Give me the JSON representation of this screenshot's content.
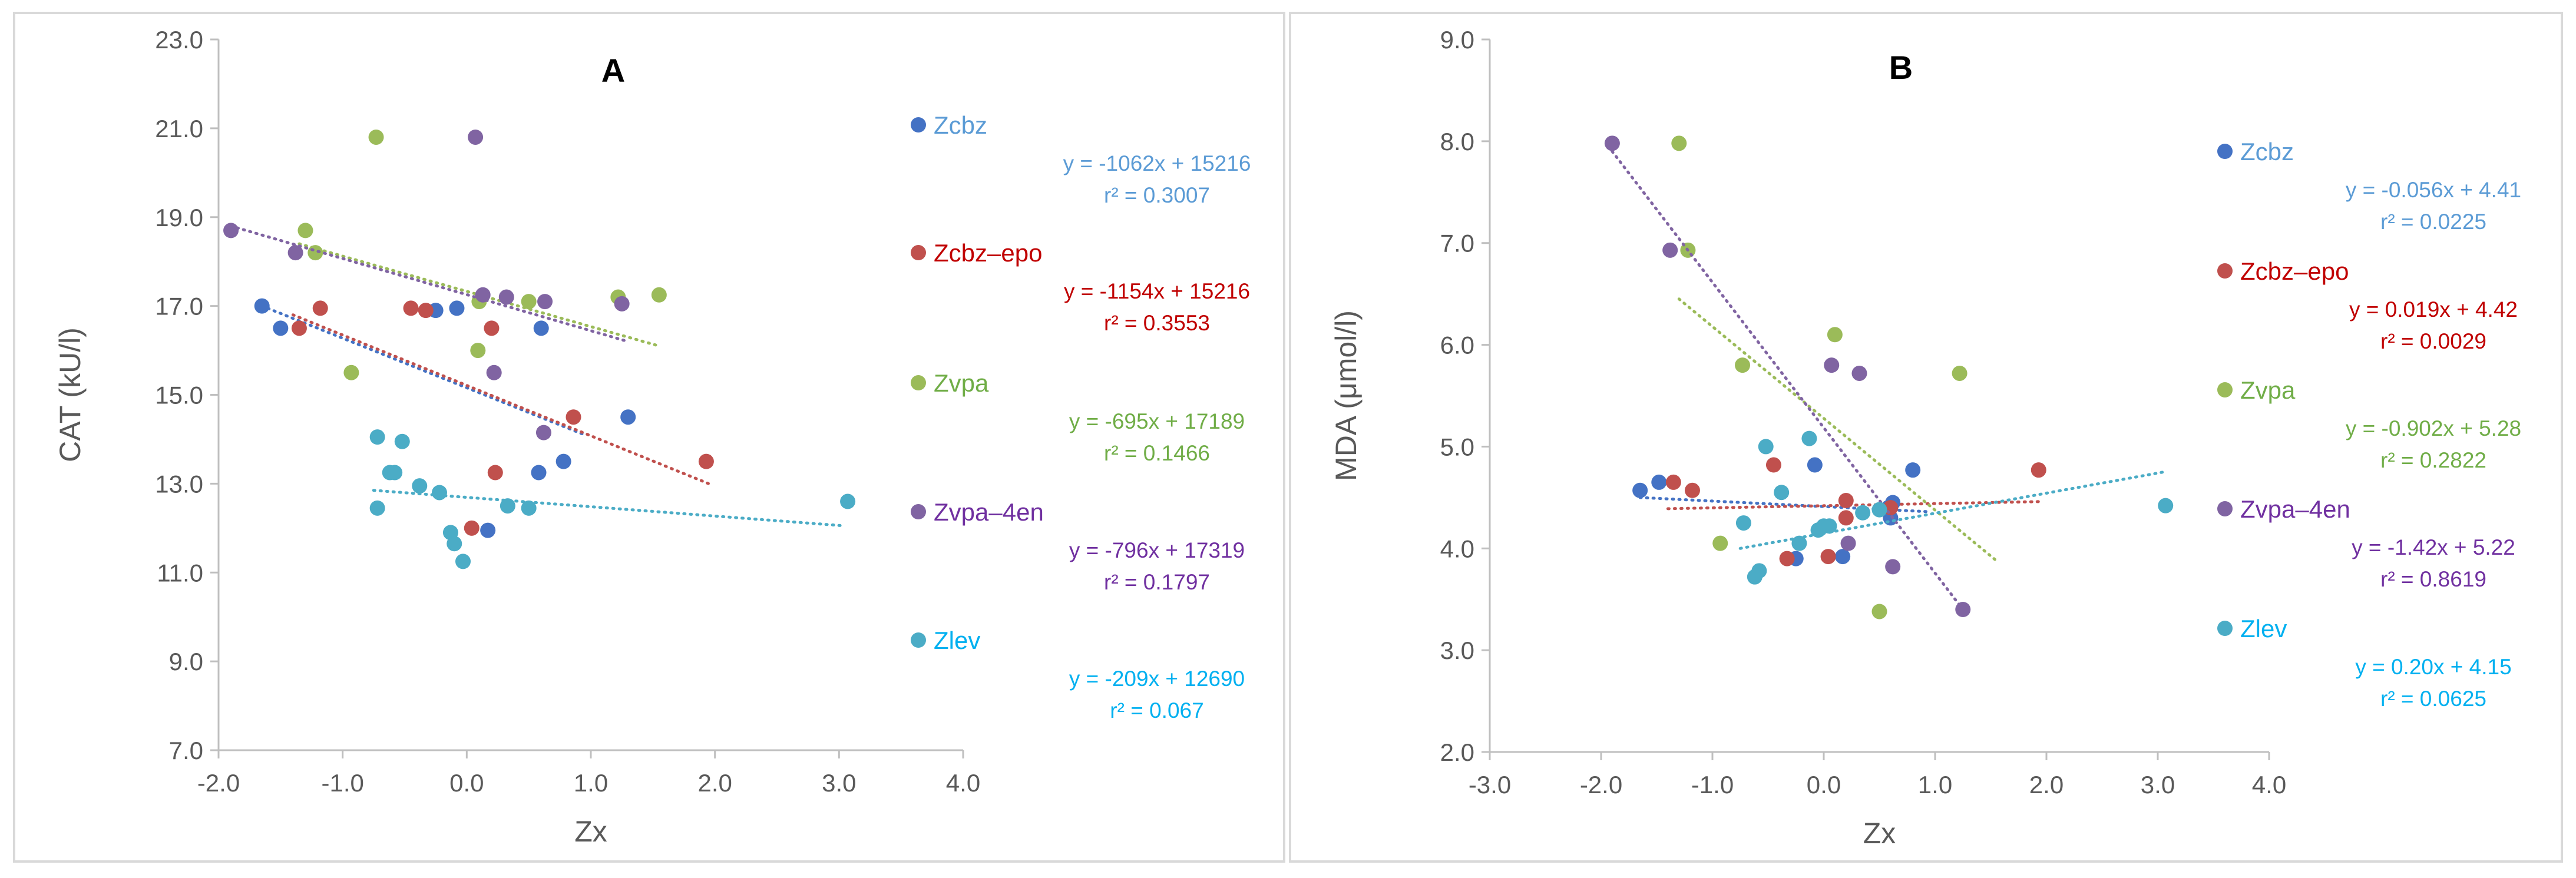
{
  "chart_data": [
    {
      "type": "scatter",
      "title": "A",
      "xlabel": "Zx",
      "ylabel": "CAT (kU/l)",
      "xlim": [
        -2.0,
        4.0
      ],
      "ylim": [
        7.0,
        23.0
      ],
      "xticks": [
        -2.0,
        -1.0,
        0.0,
        1.0,
        2.0,
        3.0,
        4.0
      ],
      "yticks": [
        7.0,
        9.0,
        11.0,
        13.0,
        15.0,
        17.0,
        19.0,
        21.0,
        23.0
      ],
      "xtick_labels": [
        "-2.0",
        "-1.0",
        "0.0",
        "1.0",
        "2.0",
        "3.0",
        "4.0"
      ],
      "ytick_labels": [
        "7.0",
        "9.0",
        "11.0",
        "13.0",
        "15.0",
        "17.0",
        "19.0",
        "21.0",
        "23.0"
      ],
      "grid": false,
      "legend": "right",
      "series": [
        {
          "name": "Zcbz",
          "color": "#4472C4",
          "label_color": "#5B9BD5",
          "eq": "y = -1062x + 15216",
          "r2": "r² = 0.3007",
          "trend": {
            "x": [
              -1.65,
              0.95
            ],
            "y": [
              17.0,
              14.1
            ]
          },
          "points": [
            [
              -1.65,
              17.0
            ],
            [
              -1.5,
              16.5
            ],
            [
              -0.25,
              16.9
            ],
            [
              -0.08,
              16.95
            ],
            [
              0.6,
              16.5
            ],
            [
              0.17,
              11.95
            ],
            [
              0.58,
              13.25
            ],
            [
              0.78,
              13.5
            ],
            [
              1.3,
              14.5
            ]
          ]
        },
        {
          "name": "Zcbz–epo",
          "color": "#C0504D",
          "label_color": "#C00000",
          "eq": "y = -1154x + 15216",
          "r2": "r² = 0.3553",
          "trend": {
            "x": [
              -1.4,
              1.95
            ],
            "y": [
              16.8,
              13.0
            ]
          },
          "points": [
            [
              -1.35,
              16.5
            ],
            [
              -1.18,
              16.95
            ],
            [
              -0.45,
              16.95
            ],
            [
              -0.33,
              16.9
            ],
            [
              0.2,
              16.5
            ],
            [
              0.23,
              13.25
            ],
            [
              0.04,
              12.0
            ],
            [
              0.86,
              14.5
            ],
            [
              1.93,
              13.5
            ]
          ]
        },
        {
          "name": "Zvpa",
          "color": "#9BBB59",
          "label_color": "#70AD47",
          "eq": "y = -695x + 17189",
          "r2": "r² = 0.1466",
          "trend": {
            "x": [
              -1.35,
              1.55
            ],
            "y": [
              18.4,
              16.1
            ]
          },
          "points": [
            [
              -1.3,
              18.7
            ],
            [
              -1.22,
              18.2
            ],
            [
              -0.93,
              15.5
            ],
            [
              -0.73,
              20.8
            ],
            [
              0.1,
              17.1
            ],
            [
              0.09,
              16.0
            ],
            [
              0.5,
              17.1
            ],
            [
              1.22,
              17.2
            ],
            [
              1.55,
              17.25
            ]
          ]
        },
        {
          "name": "Zvpa–4en",
          "color": "#8064A2",
          "label_color": "#7030A0",
          "eq": "y = -796x + 17319",
          "r2": "r² = 0.1797",
          "trend": {
            "x": [
              -1.9,
              1.3
            ],
            "y": [
              18.8,
              16.2
            ]
          },
          "points": [
            [
              -1.9,
              18.7
            ],
            [
              -1.38,
              18.2
            ],
            [
              0.07,
              20.8
            ],
            [
              0.13,
              17.25
            ],
            [
              0.32,
              17.2
            ],
            [
              0.63,
              17.1
            ],
            [
              1.25,
              17.05
            ],
            [
              0.22,
              15.5
            ],
            [
              0.62,
              14.15
            ]
          ]
        },
        {
          "name": "Zlev",
          "color": "#4BACC6",
          "label_color": "#00B0F0",
          "eq": "y = -209x + 12690",
          "r2": "r² = 0.067",
          "trend": {
            "x": [
              -0.75,
              3.05
            ],
            "y": [
              12.85,
              12.05
            ]
          },
          "points": [
            [
              -0.72,
              14.05
            ],
            [
              -0.72,
              12.45
            ],
            [
              -0.62,
              13.25
            ],
            [
              -0.58,
              13.25
            ],
            [
              -0.52,
              13.95
            ],
            [
              -0.38,
              12.95
            ],
            [
              -0.22,
              12.8
            ],
            [
              -0.13,
              11.9
            ],
            [
              -0.1,
              11.65
            ],
            [
              -0.03,
              11.25
            ],
            [
              0.33,
              12.5
            ],
            [
              0.5,
              12.45
            ],
            [
              3.07,
              12.6
            ]
          ]
        }
      ]
    },
    {
      "type": "scatter",
      "title": "B",
      "xlabel": "Zx",
      "ylabel": "MDA (μmol/l)",
      "xlim": [
        -3.0,
        4.0
      ],
      "ylim": [
        2.0,
        9.0
      ],
      "xticks": [
        -3.0,
        -2.0,
        -1.0,
        0.0,
        1.0,
        2.0,
        3.0,
        4.0
      ],
      "yticks": [
        2.0,
        3.0,
        4.0,
        5.0,
        6.0,
        7.0,
        8.0,
        9.0
      ],
      "xtick_labels": [
        "-3.0",
        "-2.0",
        "-1.0",
        "0.0",
        "1.0",
        "2.0",
        "3.0",
        "4.0"
      ],
      "ytick_labels": [
        "2.0",
        "3.0",
        "4.0",
        "5.0",
        "6.0",
        "7.0",
        "8.0",
        "9.0"
      ],
      "grid": false,
      "legend": "right",
      "series": [
        {
          "name": "Zcbz",
          "color": "#4472C4",
          "label_color": "#5B9BD5",
          "eq": "y = -0.056x + 4.41",
          "r2": "r² = 0.0225",
          "trend": {
            "x": [
              -1.65,
              0.95
            ],
            "y": [
              4.5,
              4.36
            ]
          },
          "points": [
            [
              -1.65,
              4.57
            ],
            [
              -1.48,
              4.65
            ],
            [
              -0.25,
              3.9
            ],
            [
              -0.08,
              4.82
            ],
            [
              0.17,
              3.92
            ],
            [
              0.58,
              4.4
            ],
            [
              0.6,
              4.3
            ],
            [
              0.62,
              4.45
            ],
            [
              0.8,
              4.77
            ]
          ]
        },
        {
          "name": "Zcbz–epo",
          "color": "#C0504D",
          "label_color": "#C00000",
          "eq": "y = 0.019x + 4.42",
          "r2": "r² = 0.0029",
          "trend": {
            "x": [
              -1.4,
              1.95
            ],
            "y": [
              4.39,
              4.46
            ]
          },
          "points": [
            [
              -1.35,
              4.65
            ],
            [
              -1.18,
              4.57
            ],
            [
              -0.45,
              4.82
            ],
            [
              -0.33,
              3.9
            ],
            [
              0.04,
              3.92
            ],
            [
              0.2,
              4.3
            ],
            [
              0.2,
              4.47
            ],
            [
              0.6,
              4.4
            ],
            [
              1.93,
              4.77
            ]
          ]
        },
        {
          "name": "Zvpa",
          "color": "#9BBB59",
          "label_color": "#70AD47",
          "eq": "y = -0.902x + 5.28",
          "r2": "r² = 0.2822",
          "trend": {
            "x": [
              -1.3,
              1.55
            ],
            "y": [
              6.45,
              3.88
            ]
          },
          "points": [
            [
              -1.3,
              7.98
            ],
            [
              -1.22,
              6.93
            ],
            [
              -0.93,
              4.05
            ],
            [
              -0.73,
              5.8
            ],
            [
              0.1,
              6.1
            ],
            [
              0.5,
              3.38
            ],
            [
              1.22,
              5.72
            ]
          ]
        },
        {
          "name": "Zvpa–4en",
          "color": "#8064A2",
          "label_color": "#7030A0",
          "eq": "y = -1.42x + 5.22",
          "r2": "r² = 0.8619",
          "trend": {
            "x": [
              -1.9,
              1.25
            ],
            "y": [
              7.9,
              3.4
            ]
          },
          "points": [
            [
              -1.9,
              7.98
            ],
            [
              -1.38,
              6.93
            ],
            [
              0.07,
              5.8
            ],
            [
              0.32,
              5.72
            ],
            [
              0.22,
              4.05
            ],
            [
              0.62,
              3.82
            ],
            [
              1.25,
              3.4
            ]
          ]
        },
        {
          "name": "Zlev",
          "color": "#4BACC6",
          "label_color": "#00B0F0",
          "eq": "y = 0.20x + 4.15",
          "r2": "r² = 0.0625",
          "trend": {
            "x": [
              -0.75,
              3.05
            ],
            "y": [
              4.0,
              4.75
            ]
          },
          "points": [
            [
              -0.72,
              4.25
            ],
            [
              -0.62,
              3.72
            ],
            [
              -0.58,
              3.78
            ],
            [
              -0.52,
              5.0
            ],
            [
              -0.38,
              4.55
            ],
            [
              -0.22,
              4.05
            ],
            [
              -0.13,
              5.08
            ],
            [
              -0.05,
              4.18
            ],
            [
              0.0,
              4.22
            ],
            [
              0.05,
              4.22
            ],
            [
              0.35,
              4.35
            ],
            [
              0.5,
              4.38
            ],
            [
              3.07,
              4.42
            ]
          ]
        }
      ]
    }
  ]
}
